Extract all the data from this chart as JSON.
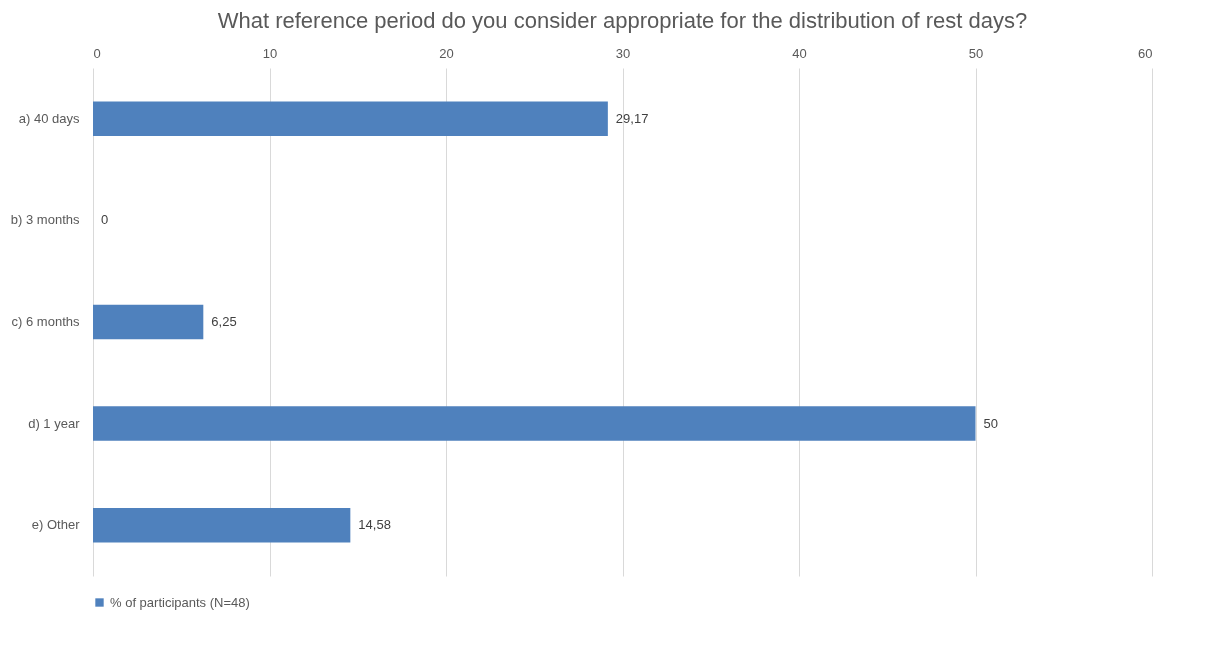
{
  "chart_data": {
    "type": "bar",
    "orientation": "horizontal",
    "title": "What reference period do you consider appropriate for the distribution of rest days?",
    "categories": [
      "a) 40 days",
      "b) 3 months",
      "c) 6 months",
      "d) 1 year",
      "e) Other"
    ],
    "series": [
      {
        "name": "% of participants (N=48)",
        "color": "#4f81bd",
        "values": [
          29.17,
          0,
          6.25,
          50,
          14.58
        ],
        "value_labels": [
          "29,17",
          "0",
          "6,25",
          "50",
          "14,58"
        ]
      }
    ],
    "xlim": [
      0,
      60
    ],
    "xticks": [
      0,
      10,
      20,
      30,
      40,
      50,
      60
    ],
    "grid": "x",
    "legend": "bottom"
  }
}
